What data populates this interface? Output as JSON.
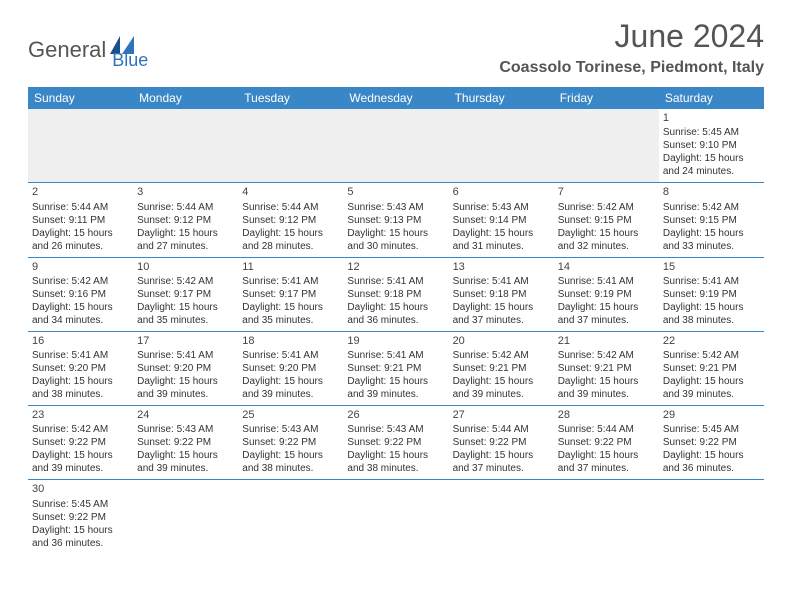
{
  "logo": {
    "text1": "General",
    "text2": "Blue"
  },
  "title": "June 2024",
  "location": "Coassolo Torinese, Piedmont, Italy",
  "colors": {
    "header_bg": "#3a87c8",
    "header_text": "#ffffff",
    "divider": "#3a87c8",
    "logo_gray": "#555555",
    "logo_blue": "#2d74b8",
    "empty_bg": "#efefef",
    "body_text": "#333333"
  },
  "day_names": [
    "Sunday",
    "Monday",
    "Tuesday",
    "Wednesday",
    "Thursday",
    "Friday",
    "Saturday"
  ],
  "sunrise_label": "Sunrise: ",
  "sunset_label": "Sunset: ",
  "daylight_label": "Daylight: ",
  "weeks": [
    [
      {
        "empty": true
      },
      {
        "empty": true
      },
      {
        "empty": true
      },
      {
        "empty": true
      },
      {
        "empty": true
      },
      {
        "empty": true
      },
      {
        "day": "1",
        "sunrise": "5:45 AM",
        "sunset": "9:10 PM",
        "daylight": "15 hours and 24 minutes."
      }
    ],
    [
      {
        "day": "2",
        "sunrise": "5:44 AM",
        "sunset": "9:11 PM",
        "daylight": "15 hours and 26 minutes."
      },
      {
        "day": "3",
        "sunrise": "5:44 AM",
        "sunset": "9:12 PM",
        "daylight": "15 hours and 27 minutes."
      },
      {
        "day": "4",
        "sunrise": "5:44 AM",
        "sunset": "9:12 PM",
        "daylight": "15 hours and 28 minutes."
      },
      {
        "day": "5",
        "sunrise": "5:43 AM",
        "sunset": "9:13 PM",
        "daylight": "15 hours and 30 minutes."
      },
      {
        "day": "6",
        "sunrise": "5:43 AM",
        "sunset": "9:14 PM",
        "daylight": "15 hours and 31 minutes."
      },
      {
        "day": "7",
        "sunrise": "5:42 AM",
        "sunset": "9:15 PM",
        "daylight": "15 hours and 32 minutes."
      },
      {
        "day": "8",
        "sunrise": "5:42 AM",
        "sunset": "9:15 PM",
        "daylight": "15 hours and 33 minutes."
      }
    ],
    [
      {
        "day": "9",
        "sunrise": "5:42 AM",
        "sunset": "9:16 PM",
        "daylight": "15 hours and 34 minutes."
      },
      {
        "day": "10",
        "sunrise": "5:42 AM",
        "sunset": "9:17 PM",
        "daylight": "15 hours and 35 minutes."
      },
      {
        "day": "11",
        "sunrise": "5:41 AM",
        "sunset": "9:17 PM",
        "daylight": "15 hours and 35 minutes."
      },
      {
        "day": "12",
        "sunrise": "5:41 AM",
        "sunset": "9:18 PM",
        "daylight": "15 hours and 36 minutes."
      },
      {
        "day": "13",
        "sunrise": "5:41 AM",
        "sunset": "9:18 PM",
        "daylight": "15 hours and 37 minutes."
      },
      {
        "day": "14",
        "sunrise": "5:41 AM",
        "sunset": "9:19 PM",
        "daylight": "15 hours and 37 minutes."
      },
      {
        "day": "15",
        "sunrise": "5:41 AM",
        "sunset": "9:19 PM",
        "daylight": "15 hours and 38 minutes."
      }
    ],
    [
      {
        "day": "16",
        "sunrise": "5:41 AM",
        "sunset": "9:20 PM",
        "daylight": "15 hours and 38 minutes."
      },
      {
        "day": "17",
        "sunrise": "5:41 AM",
        "sunset": "9:20 PM",
        "daylight": "15 hours and 39 minutes."
      },
      {
        "day": "18",
        "sunrise": "5:41 AM",
        "sunset": "9:20 PM",
        "daylight": "15 hours and 39 minutes."
      },
      {
        "day": "19",
        "sunrise": "5:41 AM",
        "sunset": "9:21 PM",
        "daylight": "15 hours and 39 minutes."
      },
      {
        "day": "20",
        "sunrise": "5:42 AM",
        "sunset": "9:21 PM",
        "daylight": "15 hours and 39 minutes."
      },
      {
        "day": "21",
        "sunrise": "5:42 AM",
        "sunset": "9:21 PM",
        "daylight": "15 hours and 39 minutes."
      },
      {
        "day": "22",
        "sunrise": "5:42 AM",
        "sunset": "9:21 PM",
        "daylight": "15 hours and 39 minutes."
      }
    ],
    [
      {
        "day": "23",
        "sunrise": "5:42 AM",
        "sunset": "9:22 PM",
        "daylight": "15 hours and 39 minutes."
      },
      {
        "day": "24",
        "sunrise": "5:43 AM",
        "sunset": "9:22 PM",
        "daylight": "15 hours and 39 minutes."
      },
      {
        "day": "25",
        "sunrise": "5:43 AM",
        "sunset": "9:22 PM",
        "daylight": "15 hours and 38 minutes."
      },
      {
        "day": "26",
        "sunrise": "5:43 AM",
        "sunset": "9:22 PM",
        "daylight": "15 hours and 38 minutes."
      },
      {
        "day": "27",
        "sunrise": "5:44 AM",
        "sunset": "9:22 PM",
        "daylight": "15 hours and 37 minutes."
      },
      {
        "day": "28",
        "sunrise": "5:44 AM",
        "sunset": "9:22 PM",
        "daylight": "15 hours and 37 minutes."
      },
      {
        "day": "29",
        "sunrise": "5:45 AM",
        "sunset": "9:22 PM",
        "daylight": "15 hours and 36 minutes."
      }
    ],
    [
      {
        "day": "30",
        "sunrise": "5:45 AM",
        "sunset": "9:22 PM",
        "daylight": "15 hours and 36 minutes."
      },
      {
        "empty": true
      },
      {
        "empty": true
      },
      {
        "empty": true
      },
      {
        "empty": true
      },
      {
        "empty": true
      },
      {
        "empty": true
      }
    ]
  ]
}
